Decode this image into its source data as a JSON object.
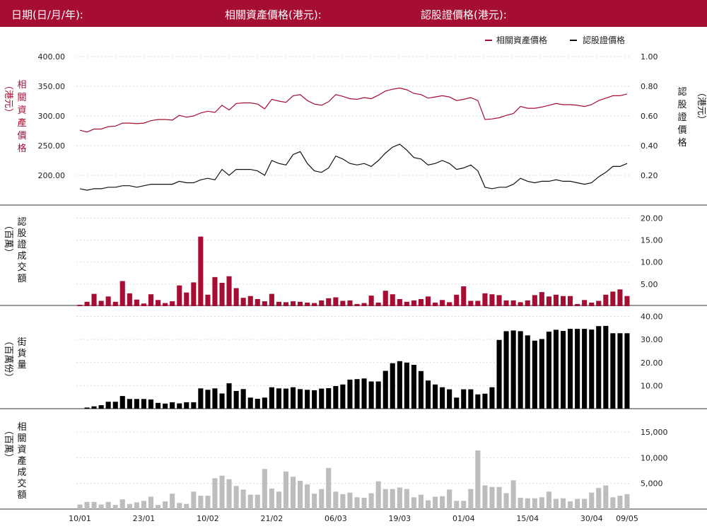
{
  "header": {
    "date_label": "日期(日/月/年):",
    "underlying_label": "相關資產價格(港元):",
    "warrant_label": "認股證價格(港元):"
  },
  "colors": {
    "brand": "#a50d32",
    "warrant": "#111111",
    "outstanding": "#000000",
    "underlying_turnover": "#bdbdbd"
  },
  "chart_data": [
    {
      "type": "line",
      "name": "price-chart",
      "legend": [
        "相關資產價格",
        "認股證價格"
      ],
      "legend_position": "top-right",
      "left_axis_label": "相關資產價格（港元）",
      "right_axis_label": "認股證價格（港元）",
      "left_ticks": [
        "400.00",
        "350.00",
        "300.00",
        "250.00",
        "200.00"
      ],
      "right_ticks": [
        "1.00",
        "0.80",
        "0.60",
        "0.40",
        "0.20"
      ],
      "left_ylim": [
        180,
        400
      ],
      "right_ylim": [
        0.1,
        1.0
      ],
      "series": [
        {
          "name": "相關資產價格",
          "axis": "left",
          "values": [
            276,
            273,
            278,
            278,
            282,
            283,
            288,
            288,
            287,
            288,
            292,
            294,
            294,
            293,
            301,
            298,
            300,
            305,
            308,
            306,
            318,
            310,
            321,
            322,
            322,
            320,
            312,
            328,
            325,
            323,
            334,
            336,
            326,
            320,
            318,
            324,
            336,
            333,
            329,
            328,
            331,
            329,
            335,
            342,
            345,
            347,
            344,
            338,
            336,
            330,
            332,
            334,
            332,
            326,
            328,
            331,
            326,
            294,
            295,
            297,
            301,
            304,
            316,
            313,
            313,
            315,
            318,
            321,
            319,
            319,
            318,
            316,
            319,
            326,
            330,
            334,
            334,
            337
          ],
          "note": ""
        },
        {
          "name": "認股證價格",
          "axis": "right",
          "values": [
            0.11,
            0.1,
            0.11,
            0.11,
            0.12,
            0.12,
            0.13,
            0.13,
            0.12,
            0.13,
            0.14,
            0.14,
            0.14,
            0.14,
            0.16,
            0.15,
            0.15,
            0.17,
            0.18,
            0.17,
            0.24,
            0.2,
            0.24,
            0.24,
            0.24,
            0.23,
            0.2,
            0.3,
            0.28,
            0.27,
            0.34,
            0.36,
            0.28,
            0.23,
            0.22,
            0.25,
            0.33,
            0.31,
            0.28,
            0.27,
            0.28,
            0.26,
            0.3,
            0.35,
            0.39,
            0.41,
            0.37,
            0.32,
            0.31,
            0.27,
            0.28,
            0.3,
            0.28,
            0.24,
            0.25,
            0.27,
            0.23,
            0.12,
            0.11,
            0.12,
            0.12,
            0.14,
            0.18,
            0.16,
            0.15,
            0.16,
            0.16,
            0.17,
            0.16,
            0.16,
            0.15,
            0.14,
            0.15,
            0.19,
            0.22,
            0.26,
            0.26,
            0.28
          ]
        }
      ]
    },
    {
      "type": "bar",
      "name": "warrant-turnover",
      "axis_label": "認股證成交額（百萬）",
      "ticks": [
        "20.00",
        "15.00",
        "10.00",
        "5.00"
      ],
      "ylim": [
        0,
        22
      ],
      "values": [
        0.3,
        1.0,
        2.8,
        1.2,
        2.2,
        1.0,
        5.7,
        2.9,
        1.5,
        0.6,
        2.7,
        1.4,
        0.7,
        1.1,
        4.7,
        3.1,
        5.4,
        15.8,
        2.6,
        6.6,
        5.3,
        6.8,
        4.1,
        1.9,
        2.3,
        1.6,
        1.1,
        2.8,
        1.0,
        0.9,
        1.1,
        1.0,
        0.8,
        0.7,
        1.3,
        1.8,
        2.0,
        1.2,
        1.3,
        0.5,
        0.7,
        2.4,
        0.8,
        3.5,
        2.7,
        1.6,
        1.0,
        1.3,
        1.6,
        2.2,
        0.8,
        1.4,
        0.9,
        2.6,
        4.5,
        1.2,
        1.2,
        2.9,
        2.7,
        2.5,
        1.3,
        1.3,
        0.9,
        1.3,
        2.5,
        3.2,
        2.2,
        2.6,
        2.3,
        2.3,
        0.5,
        1.4,
        0.8,
        1.2,
        2.6,
        3.3,
        3.8,
        2.3
      ]
    },
    {
      "type": "bar",
      "name": "outstanding",
      "axis_label": "街貨量（百萬份）",
      "ticks": [
        "40.00",
        "30.00",
        "20.00",
        "10.00"
      ],
      "ylim": [
        0,
        42
      ],
      "values": [
        0,
        0.5,
        1.0,
        1.5,
        3.0,
        3.0,
        5.5,
        4.2,
        4.2,
        4.2,
        4.0,
        2.5,
        2.2,
        2.8,
        2.3,
        2.8,
        2.8,
        8.8,
        8.2,
        8.8,
        6.6,
        11.0,
        7.7,
        8.5,
        4.8,
        4.3,
        4.8,
        9.3,
        8.8,
        8.7,
        9.3,
        8.5,
        8.2,
        8.0,
        8.7,
        8.9,
        9.8,
        10.5,
        12.6,
        12.8,
        13.1,
        11.8,
        11.8,
        16.4,
        19.7,
        20.6,
        20.0,
        19.0,
        16.3,
        12.2,
        10.5,
        9.3,
        8.4,
        4.8,
        8.4,
        8.4,
        6.2,
        6.5,
        9.3,
        29.8,
        33.6,
        33.9,
        33.6,
        31.8,
        29.5,
        30.2,
        33.4,
        34.2,
        33.7,
        34.6,
        34.6,
        34.6,
        34.3,
        35.8,
        35.9,
        32.7,
        32.7,
        32.7
      ]
    },
    {
      "type": "bar",
      "name": "underlying-turnover",
      "axis_label": "相關資產成交額（百萬）",
      "ticks": [
        "15,000",
        "10,000",
        "5,000"
      ],
      "ylim": [
        0,
        16500
      ],
      "values": [
        900,
        1400,
        1400,
        900,
        1400,
        800,
        1900,
        1000,
        1300,
        1600,
        2400,
        800,
        1500,
        3000,
        1200,
        1000,
        3400,
        2600,
        2600,
        6000,
        6500,
        5800,
        4500,
        3800,
        2800,
        2800,
        7800,
        4000,
        3400,
        7300,
        6300,
        5500,
        4800,
        3000,
        3900,
        8000,
        3400,
        2900,
        3200,
        2300,
        2200,
        3100,
        5400,
        3900,
        3900,
        4200,
        3900,
        2300,
        2800,
        1700,
        2400,
        2500,
        3800,
        1600,
        1600,
        3900,
        11400,
        4600,
        4300,
        4300,
        3100,
        5600,
        2200,
        2100,
        2100,
        2300,
        3400,
        2000,
        2100,
        1500,
        2000,
        2000,
        3200,
        4100,
        4600,
        2300,
        2600,
        2900
      ]
    }
  ],
  "x_axis": {
    "tick_labels": [
      "10/01",
      "23/01",
      "10/02",
      "21/02",
      "06/03",
      "19/03",
      "01/04",
      "15/04",
      "30/04",
      "09/05"
    ],
    "tick_index": [
      0,
      9,
      18,
      27,
      36,
      45,
      54,
      63,
      72,
      77
    ]
  }
}
